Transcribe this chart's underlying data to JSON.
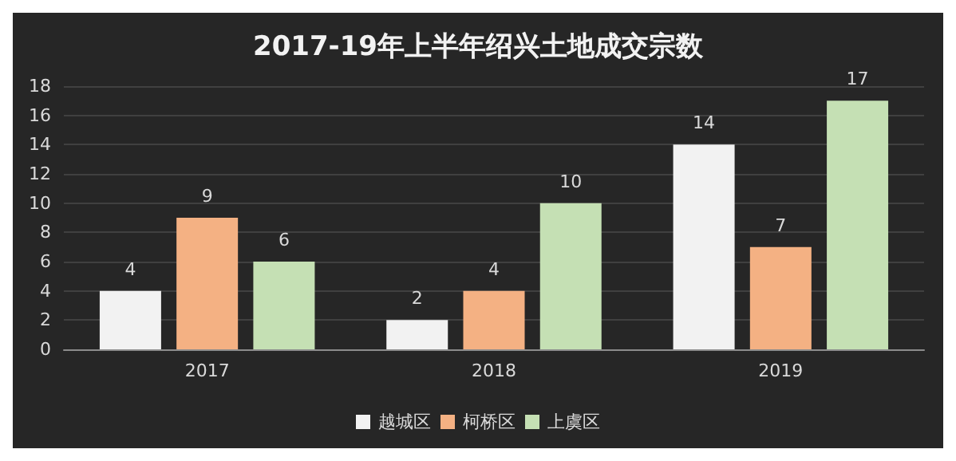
{
  "chart_data": {
    "type": "bar",
    "title": "2017-19年上半年绍兴土地成交宗数",
    "categories": [
      "2017",
      "2018",
      "2019"
    ],
    "series": [
      {
        "name": "越城区",
        "color": "#f2f2f2",
        "values": [
          4,
          2,
          14
        ]
      },
      {
        "name": "柯桥区",
        "color": "#f4b183",
        "values": [
          9,
          4,
          7
        ]
      },
      {
        "name": "上虞区",
        "color": "#c5e0b4",
        "values": [
          6,
          10,
          17
        ]
      }
    ],
    "ylim": [
      0,
      18
    ],
    "yticks": [
      0,
      2,
      4,
      6,
      8,
      10,
      12,
      14,
      16,
      18
    ],
    "grid": "y",
    "legend": "bottom",
    "data_labels": true
  }
}
